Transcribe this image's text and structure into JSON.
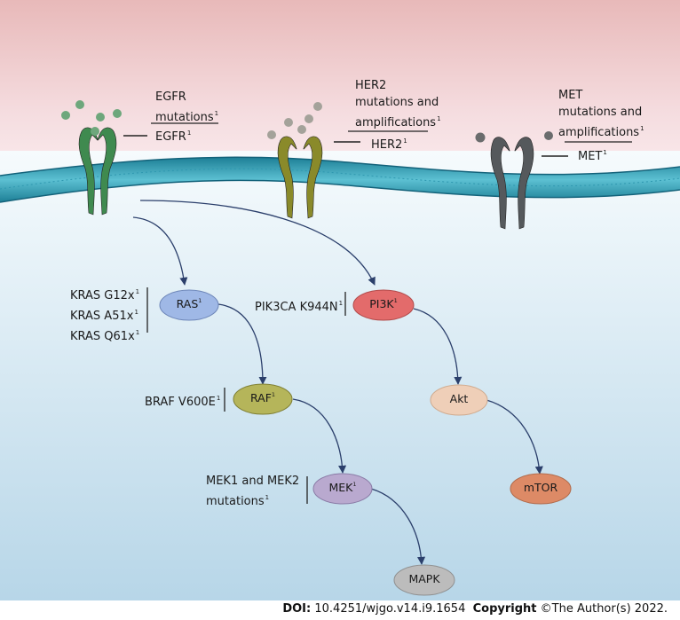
{
  "receptors": {
    "egfr": {
      "annotation": [
        "EGFR",
        "mutations"
      ],
      "annotation_sup": "1",
      "name": "EGFR",
      "name_sup": "1",
      "color": "#3f8a4f"
    },
    "her2": {
      "annotation": [
        "HER2",
        "mutations and",
        "amplifications"
      ],
      "annotation_sup": "1",
      "name": "HER2",
      "name_sup": "1",
      "color": "#8a8a2a"
    },
    "met": {
      "annotation": [
        "MET",
        "mutations and",
        "amplifications"
      ],
      "annotation_sup": "1",
      "name": "MET",
      "name_sup": "1",
      "color": "#55595c"
    }
  },
  "nodes": {
    "ras": {
      "label": "RAS",
      "sup": "1",
      "color": "#9fb8e6"
    },
    "raf": {
      "label": "RAF",
      "sup": "1",
      "color": "#b5b55a"
    },
    "mek": {
      "label": "MEK",
      "sup": "1",
      "color": "#b9a9cf"
    },
    "mapk": {
      "label": "MAPK",
      "sup": "",
      "color": "#bcbcbc"
    },
    "pi3k": {
      "label": "PI3K",
      "sup": "1",
      "color": "#e36b6b"
    },
    "akt": {
      "label": "Akt",
      "sup": "",
      "color": "#efcfb8"
    },
    "mtor": {
      "label": "mTOR",
      "sup": "",
      "color": "#dd8a66"
    }
  },
  "mutation_labels": {
    "kras": [
      {
        "text": "KRAS G12x",
        "sup": "1"
      },
      {
        "text": "KRAS A51x",
        "sup": "1"
      },
      {
        "text": "KRAS Q61x",
        "sup": "1"
      }
    ],
    "braf": {
      "text": "BRAF V600E",
      "sup": "1"
    },
    "pik3ca": {
      "text": "PIK3CA K944N",
      "sup": "1"
    },
    "mek": {
      "lines": [
        "MEK1 and MEK2",
        "mutations"
      ],
      "sup": "1"
    }
  },
  "footer": {
    "doi_label": "DOI:",
    "doi_value": "10.4251/wjgo.v14.i9.1654",
    "copyright_label": "Copyright",
    "copyright_value": "©The Author(s) 2022."
  }
}
